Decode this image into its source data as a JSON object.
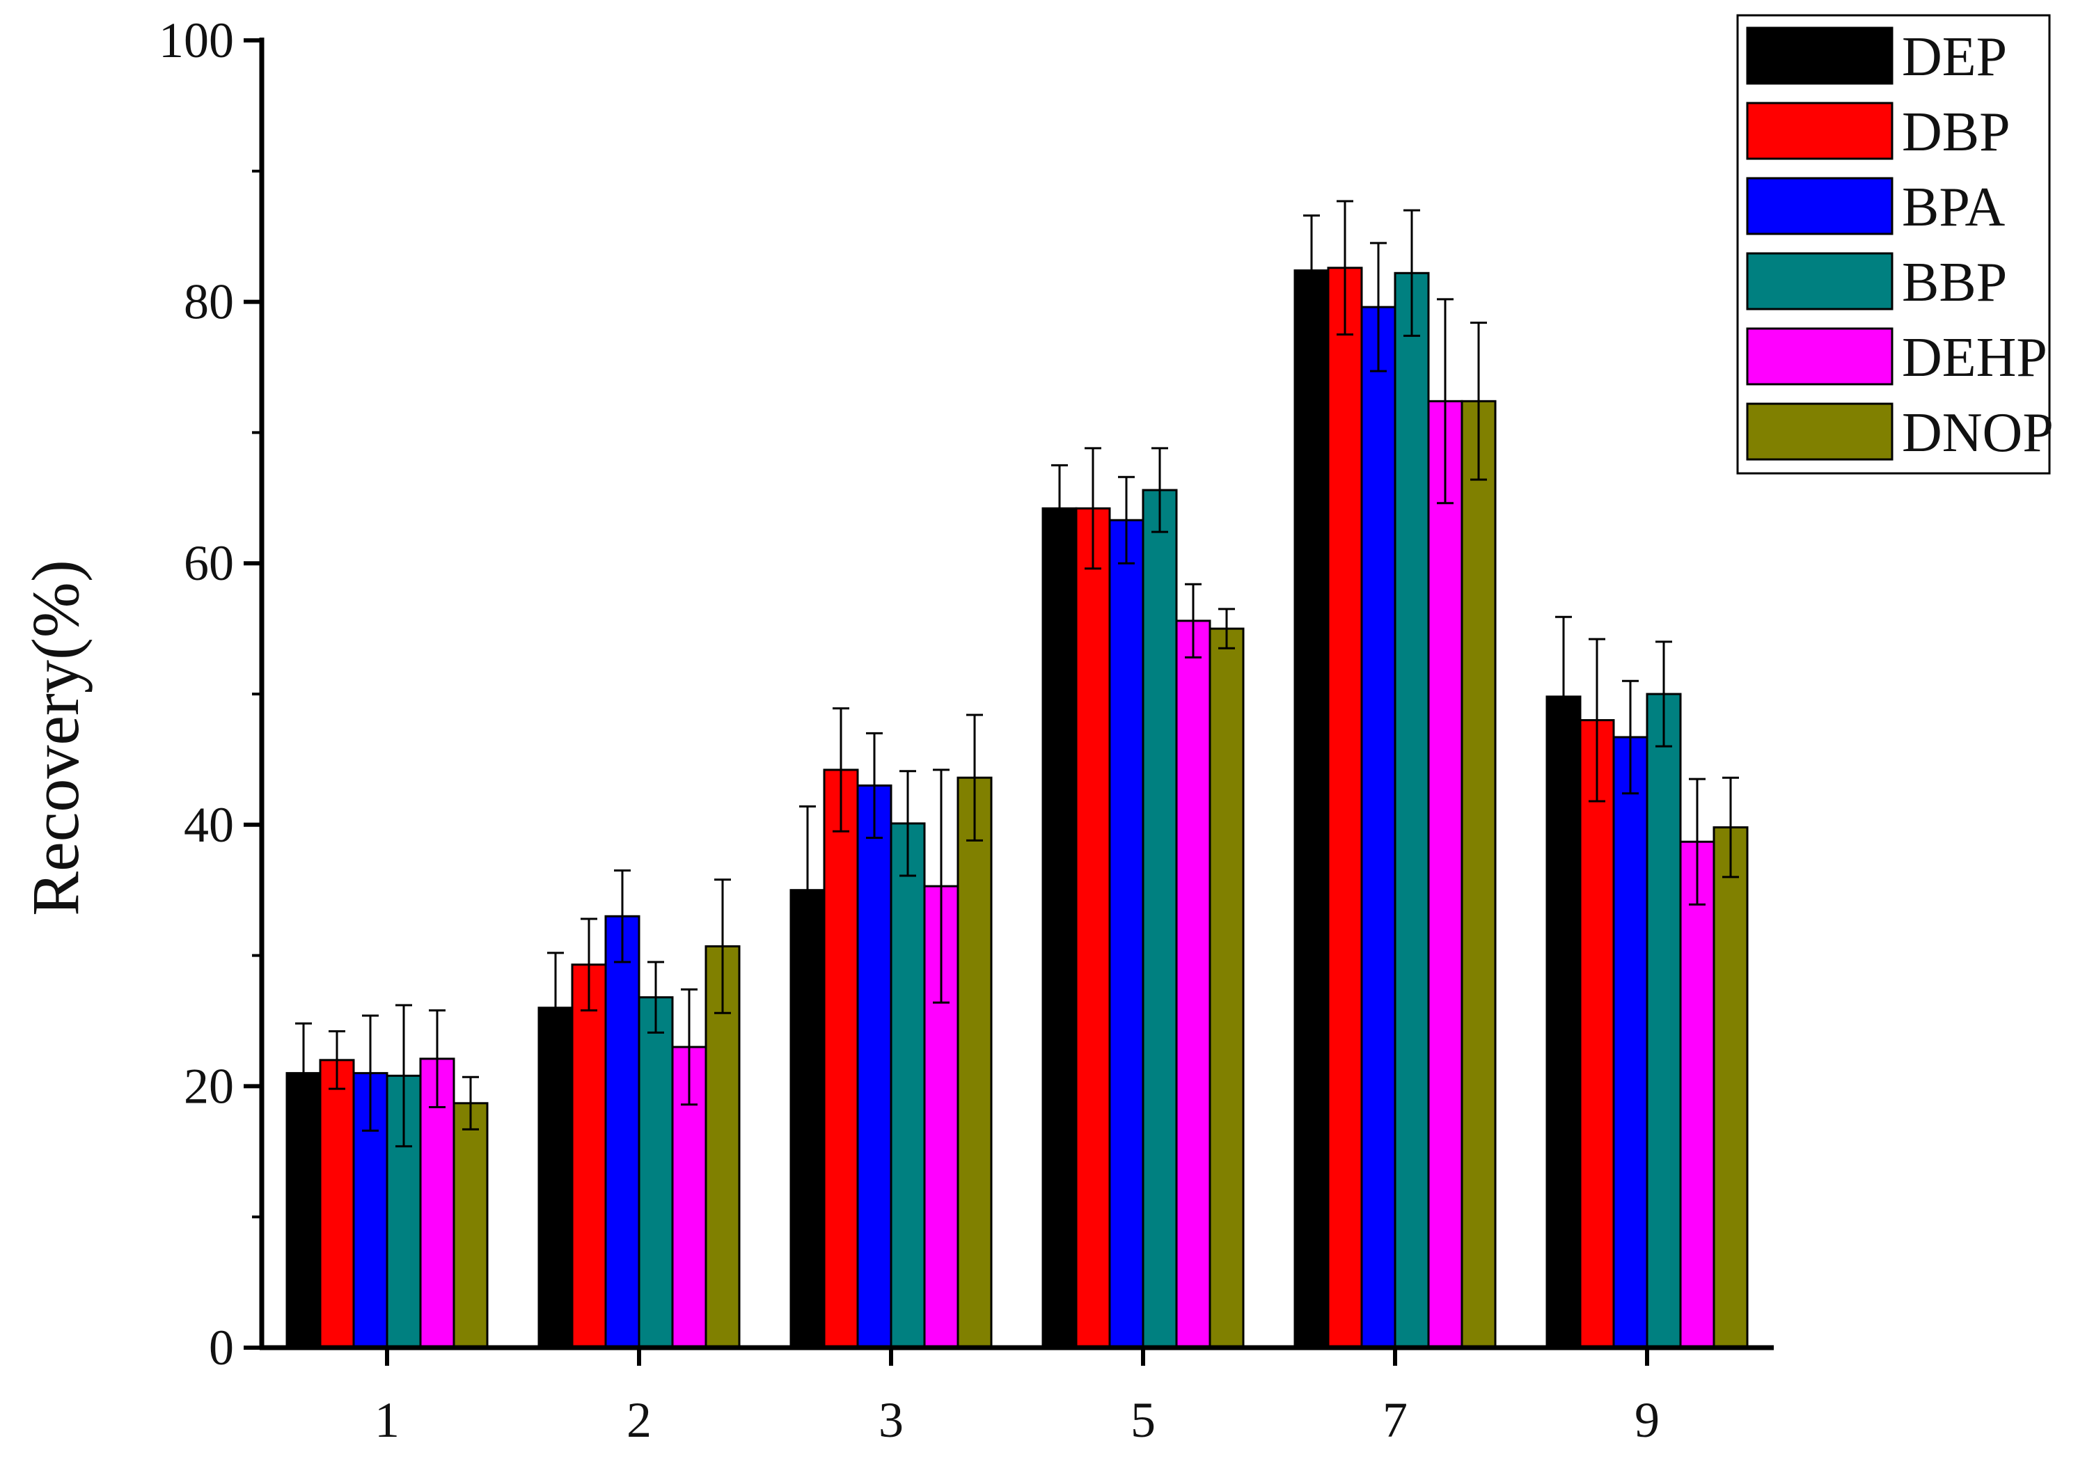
{
  "chart_data": {
    "type": "bar",
    "title": "",
    "xlabel": "",
    "ylabel": "Recovery(%)",
    "ylim": [
      0,
      100
    ],
    "yticks": [
      0,
      20,
      40,
      60,
      80,
      100
    ],
    "categories": [
      "1",
      "2",
      "3",
      "5",
      "7",
      "9"
    ],
    "grid": false,
    "legend_position": "top-right",
    "series": [
      {
        "name": "DEP",
        "color": "#000000",
        "values": [
          21.0,
          26.0,
          35.0,
          64.2,
          82.4,
          49.8
        ],
        "errors": [
          3.8,
          4.2,
          6.4,
          3.3,
          4.2,
          6.1
        ]
      },
      {
        "name": "DBP",
        "color": "#ff0000",
        "values": [
          22.0,
          29.3,
          44.2,
          64.2,
          82.6,
          48.0
        ],
        "errors": [
          2.2,
          3.5,
          4.7,
          4.6,
          5.1,
          6.2
        ]
      },
      {
        "name": "BPA",
        "color": "#0000ff",
        "values": [
          21.0,
          33.0,
          43.0,
          63.3,
          79.6,
          46.7
        ],
        "errors": [
          4.4,
          3.5,
          4.0,
          3.3,
          4.9,
          4.3
        ]
      },
      {
        "name": "BBP",
        "color": "#008080",
        "values": [
          20.8,
          26.8,
          40.1,
          65.6,
          82.2,
          50.0
        ],
        "errors": [
          5.4,
          2.7,
          4.0,
          3.2,
          4.8,
          4.0
        ]
      },
      {
        "name": "DEHP",
        "color": "#ff00ff",
        "values": [
          22.1,
          23.0,
          35.3,
          55.6,
          72.4,
          38.7
        ],
        "errors": [
          3.7,
          4.4,
          8.9,
          2.8,
          7.8,
          4.8
        ]
      },
      {
        "name": "DNOP",
        "color": "#808000",
        "values": [
          18.7,
          30.7,
          43.6,
          55.0,
          72.4,
          39.8
        ],
        "errors": [
          2.0,
          5.1,
          4.8,
          1.5,
          6.0,
          3.8
        ]
      }
    ]
  }
}
